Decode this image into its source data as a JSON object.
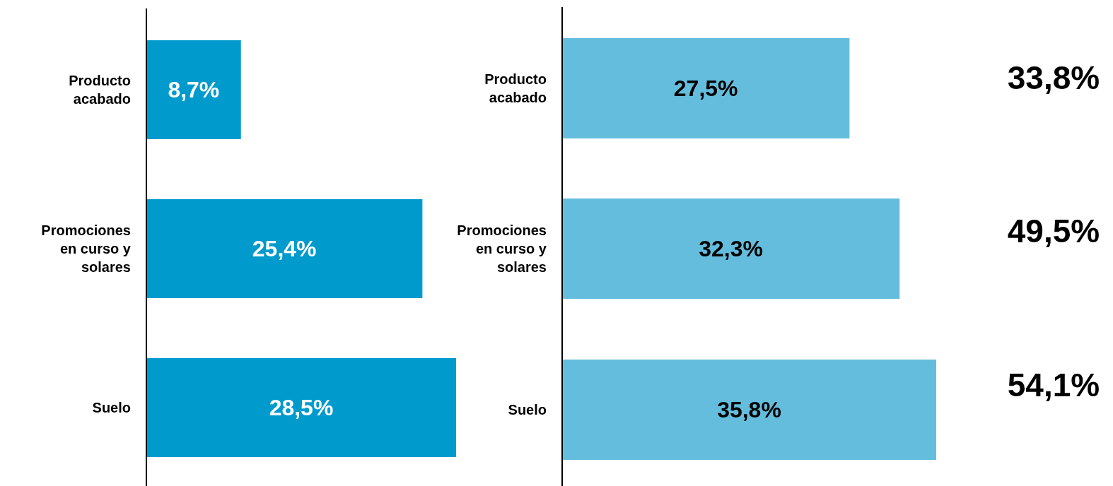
{
  "chart_data": [
    {
      "type": "bar",
      "orientation": "horizontal",
      "categories": [
        "Producto acabado",
        "Promociones en curso y solares",
        "Suelo"
      ],
      "values": [
        8.7,
        25.4,
        28.5
      ],
      "color": "#009acd",
      "data_labels": true,
      "value_labels": [
        "8,7%",
        "25,4%",
        "28,5%"
      ]
    },
    {
      "type": "bar",
      "orientation": "horizontal",
      "categories": [
        "Producto acabado",
        "Promociones en curso y solares",
        "Suelo"
      ],
      "values": [
        27.5,
        32.3,
        35.8
      ],
      "color": "#64bddc",
      "data_labels": true,
      "value_labels": [
        "27,5%",
        "32,3%",
        "35,8%"
      ]
    },
    {
      "type": "other",
      "annotations": [
        "33,8%",
        "49,5%",
        "54,1%"
      ]
    }
  ]
}
